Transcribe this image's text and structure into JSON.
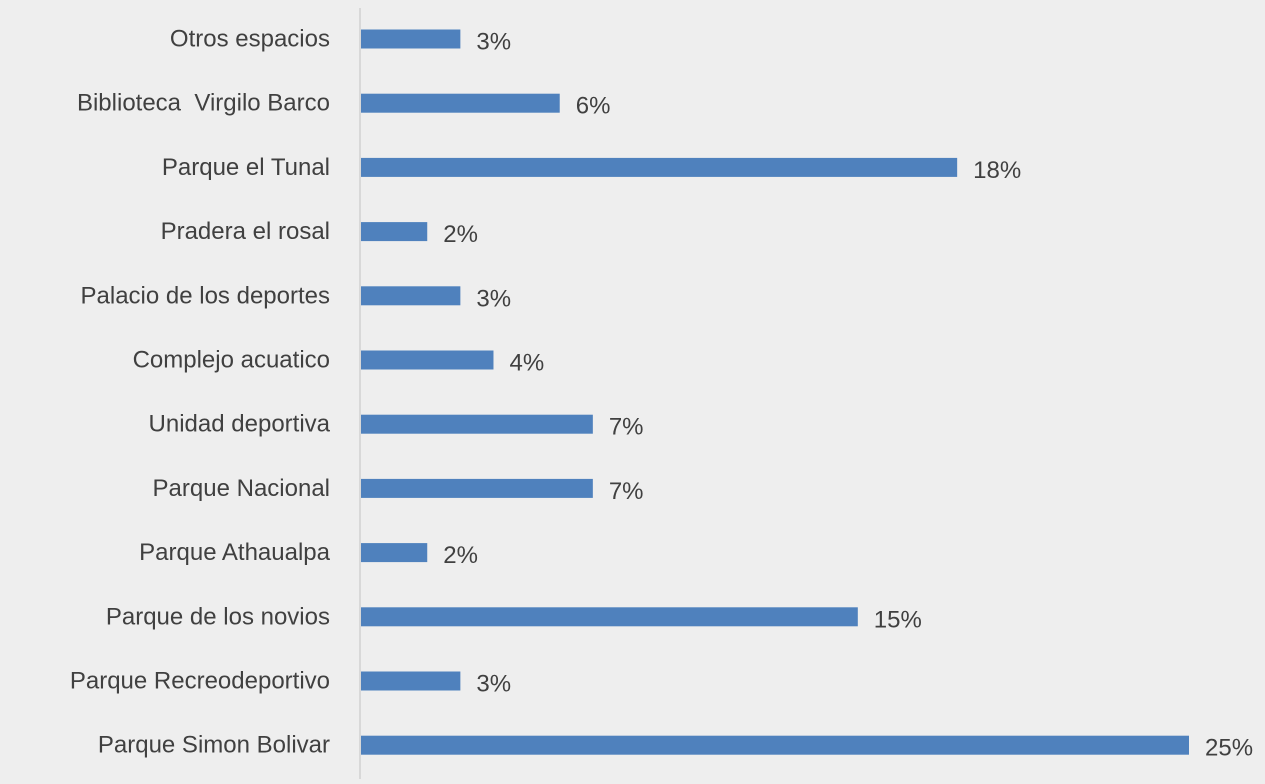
{
  "chart_data": {
    "type": "bar",
    "orientation": "horizontal",
    "title": "",
    "xlabel": "",
    "ylabel": "",
    "categories": [
      "Otros espacios",
      "Biblioteca  Virgilo Barco",
      "Parque el Tunal",
      "Pradera el rosal",
      "Palacio de los deportes",
      "Complejo acuatico",
      "Unidad deportiva",
      "Parque Nacional",
      "Parque Athaualpa",
      "Parque de los novios",
      "Parque Recreodeportivo",
      "Parque Simon Bolivar"
    ],
    "values": [
      3,
      6,
      18,
      2,
      3,
      4,
      7,
      7,
      2,
      15,
      3,
      25
    ],
    "data_labels": [
      "3%",
      "6%",
      "18%",
      "2%",
      "3%",
      "4%",
      "7%",
      "7%",
      "2%",
      "15%",
      "3%",
      "25%"
    ],
    "value_unit": "%",
    "xlim": [
      0,
      25
    ],
    "grid": false,
    "legend": "none",
    "colors": {
      "bar": "#4f81bd",
      "axis": "#d0d0d0",
      "text": "#404040",
      "background": "#eeeeee"
    }
  }
}
